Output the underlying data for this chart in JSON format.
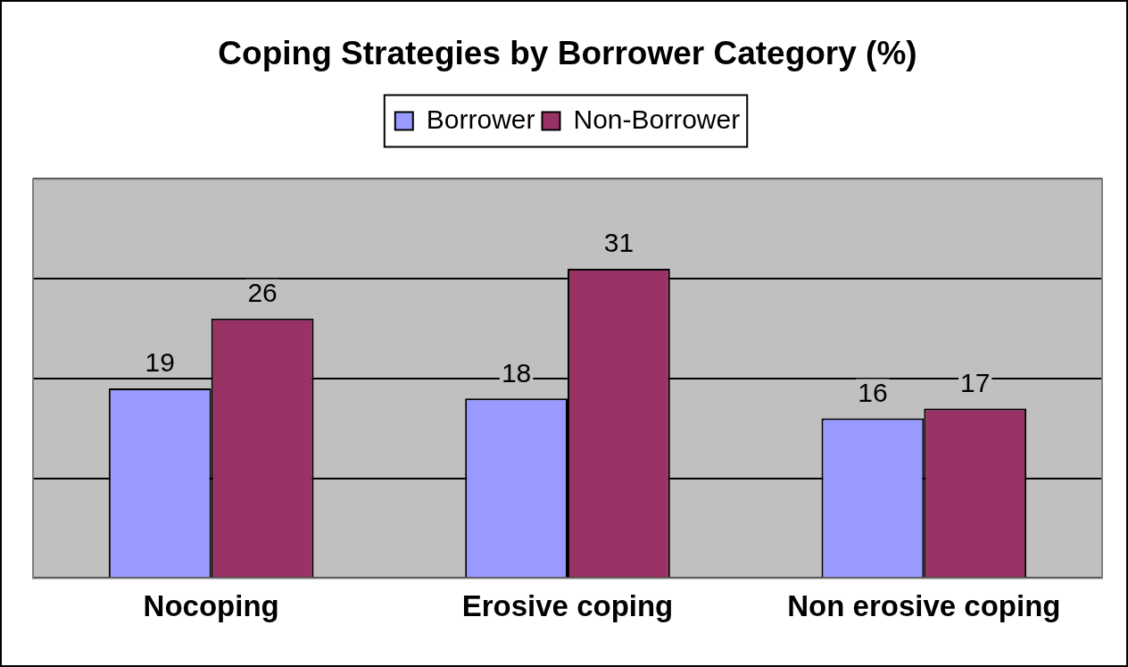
{
  "chart_data": {
    "type": "bar",
    "title": "Coping Strategies by Borrower Category (%)",
    "categories": [
      "Nocoping",
      "Erosive coping",
      "Non erosive coping"
    ],
    "series": [
      {
        "name": "Borrower",
        "color": "#9999ff",
        "values": [
          19,
          18,
          16
        ]
      },
      {
        "name": "Non-Borrower",
        "color": "#993366",
        "values": [
          26,
          31,
          17
        ]
      }
    ],
    "grid": "y",
    "legend": "top",
    "tick_labels": "x",
    "data_labels": true
  }
}
